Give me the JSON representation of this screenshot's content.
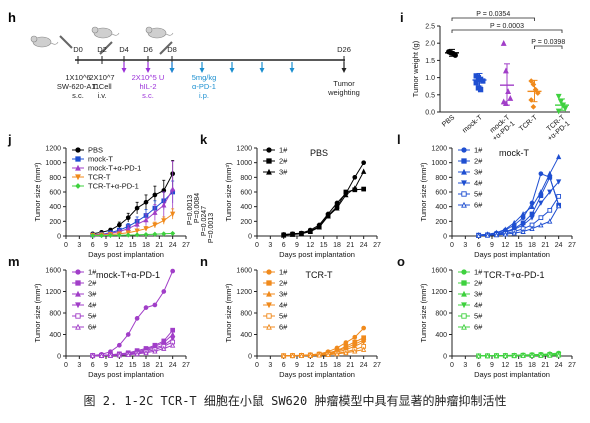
{
  "caption": "图 2. 1-2C TCR-T 细胞在小鼠 SW620 肿瘤模型中具有显著的肿瘤抑制活性",
  "timeline": {
    "panel": "h",
    "days": [
      "D0",
      "D2",
      "D4",
      "D6",
      "D8",
      "D26"
    ],
    "events": [
      {
        "text": "1X10^6\nSW-620-A11\ns.c."
      },
      {
        "text": "2X10^7\nT Cell\ni.v."
      },
      {
        "text": "2X10^5 U\nhIL-2\ns.c."
      },
      {
        "text": "5mg/kg\nα-PD-1\ni.p."
      },
      {
        "text": "Tumor\nweighting"
      }
    ],
    "colors": {
      "il2": "#9b30d9",
      "pd1": "#1b8fd0",
      "axis": "#222222"
    }
  },
  "chart_data": [
    {
      "panel": "i",
      "type": "scatter",
      "ylabel": "Tumor weight (g)",
      "ylim": [
        0,
        2.5
      ],
      "yticks": [
        "0.0",
        "0.5",
        "1.0",
        "1.5",
        "2.0",
        "2.5"
      ],
      "categories": [
        "PBS",
        "mock-T",
        "mock-T\n+α-PD-1",
        "TCR-T",
        "TCR-T\n+α-PD-1"
      ],
      "colors": [
        "#000000",
        "#1f4fd1",
        "#a13ec8",
        "#f08a1c",
        "#3fd13f"
      ],
      "markers": [
        "circle",
        "square",
        "triangle",
        "diamond",
        "triangle-down"
      ],
      "points": [
        [
          1.75,
          1.72,
          1.7,
          1.65
        ],
        [
          1.05,
          1.0,
          0.95,
          0.9,
          0.85,
          0.7,
          0.65
        ],
        [
          2.0,
          1.2,
          0.6,
          0.4,
          0.3,
          0.25
        ],
        [
          0.9,
          0.8,
          0.65,
          0.55,
          0.35,
          0.15
        ],
        [
          0.45,
          0.3,
          0.2,
          0.1,
          0.02
        ]
      ],
      "means": [
        1.72,
        0.93,
        0.78,
        0.6,
        0.2
      ],
      "errors": [
        [
          1.62,
          1.82
        ],
        [
          0.75,
          1.12
        ],
        [
          0.2,
          1.4
        ],
        [
          0.3,
          0.92
        ],
        [
          0.05,
          0.38
        ]
      ],
      "pvalues": [
        {
          "text": "P = 0.0354",
          "from": 1,
          "to": 4
        },
        {
          "text": "P = 0.0003",
          "from": 1,
          "to": 5
        },
        {
          "text": "P = 0.0398",
          "from": 4,
          "to": 5
        }
      ]
    },
    {
      "panel": "j",
      "type": "line",
      "xlabel": "Days post implantation",
      "ylabel": "Tumor size (mm³)",
      "xlim": [
        0,
        27
      ],
      "ylim": [
        0,
        1200
      ],
      "xticks": [
        "0",
        "3",
        "6",
        "9",
        "12",
        "15",
        "18",
        "21",
        "24",
        "27"
      ],
      "yticks": [
        "0",
        "200",
        "400",
        "600",
        "800",
        "1000",
        "1200"
      ],
      "x": [
        6,
        8,
        10,
        12,
        14,
        16,
        18,
        20,
        22,
        24
      ],
      "series": [
        {
          "name": "PBS",
          "color": "#000000",
          "marker": "circle",
          "values": [
            30,
            50,
            80,
            150,
            250,
            380,
            460,
            560,
            620,
            850
          ],
          "err": [
            10,
            15,
            25,
            40,
            60,
            80,
            100,
            120,
            140,
            180
          ]
        },
        {
          "name": "mock-T",
          "color": "#1f4fd1",
          "marker": "square",
          "values": [
            15,
            25,
            45,
            80,
            130,
            200,
            280,
            380,
            480,
            600
          ],
          "err": [
            5,
            10,
            15,
            25,
            40,
            60,
            80,
            100,
            120,
            150
          ]
        },
        {
          "name": "mock-T+α-PD-1",
          "color": "#a13ec8",
          "marker": "triangle",
          "values": [
            15,
            20,
            35,
            60,
            100,
            160,
            220,
            320,
            420,
            640
          ],
          "err": [
            5,
            10,
            15,
            25,
            40,
            60,
            80,
            110,
            180,
            380
          ]
        },
        {
          "name": "TCR-T",
          "color": "#f08a1c",
          "marker": "triangle-down",
          "values": [
            10,
            15,
            20,
            30,
            45,
            70,
            100,
            150,
            210,
            300
          ],
          "err": [
            5,
            5,
            10,
            10,
            15,
            20,
            30,
            40,
            50,
            70
          ]
        },
        {
          "name": "TCR-T+α-PD-1",
          "color": "#3fd13f",
          "marker": "diamond",
          "values": [
            5,
            5,
            8,
            10,
            12,
            15,
            20,
            25,
            30,
            35
          ],
          "err": [
            2,
            2,
            3,
            3,
            4,
            5,
            6,
            7,
            8,
            10
          ]
        }
      ],
      "pvalues": [
        "P=0.0013",
        "P=0.0084",
        "P=0.0247",
        "P=0.0013"
      ]
    },
    {
      "panel": "k",
      "type": "line",
      "title": "PBS",
      "xlabel": "Days post implantation",
      "ylabel": "Tumor size (mm³)",
      "xlim": [
        0,
        27
      ],
      "ylim": [
        0,
        1200
      ],
      "xticks": [
        "0",
        "3",
        "6",
        "9",
        "12",
        "15",
        "18",
        "21",
        "24",
        "27"
      ],
      "yticks": [
        "0",
        "200",
        "400",
        "600",
        "800",
        "1000",
        "1200"
      ],
      "x": [
        6,
        8,
        10,
        12,
        14,
        16,
        18,
        20,
        22,
        24
      ],
      "series": [
        {
          "name": "1#",
          "color": "#000000",
          "marker": "circle",
          "values": [
            20,
            30,
            40,
            80,
            150,
            300,
            450,
            580,
            800,
            1000
          ]
        },
        {
          "name": "2#",
          "color": "#000000",
          "marker": "square",
          "values": [
            15,
            25,
            35,
            70,
            130,
            280,
            400,
            600,
            630,
            640
          ]
        },
        {
          "name": "3#",
          "color": "#000000",
          "marker": "triangle",
          "values": [
            10,
            20,
            30,
            60,
            120,
            270,
            380,
            560,
            650,
            880
          ]
        }
      ]
    },
    {
      "panel": "l",
      "type": "line",
      "title": "mock-T",
      "xlabel": "Days post implantation",
      "ylabel": "Tumor size (mm³)",
      "xlim": [
        0,
        27
      ],
      "ylim": [
        0,
        1200
      ],
      "xticks": [
        "0",
        "3",
        "6",
        "9",
        "12",
        "15",
        "18",
        "21",
        "24",
        "27"
      ],
      "yticks": [
        "0",
        "200",
        "400",
        "600",
        "800",
        "1000",
        "1200"
      ],
      "x": [
        6,
        8,
        10,
        12,
        14,
        16,
        18,
        20,
        22,
        24
      ],
      "series": [
        {
          "name": "1#",
          "color": "#1f4fd1",
          "marker": "circle",
          "values": [
            10,
            20,
            40,
            80,
            150,
            250,
            450,
            850,
            800,
            420
          ]
        },
        {
          "name": "2#",
          "color": "#1f4fd1",
          "marker": "square",
          "values": [
            10,
            15,
            30,
            60,
            100,
            180,
            300,
            550,
            800,
            420
          ]
        },
        {
          "name": "3#",
          "color": "#1f4fd1",
          "marker": "triangle",
          "values": [
            15,
            25,
            45,
            90,
            180,
            300,
            400,
            600,
            850,
            1080
          ]
        },
        {
          "name": "4#",
          "color": "#1f4fd1",
          "marker": "triangle-down",
          "values": [
            10,
            15,
            25,
            50,
            90,
            150,
            250,
            450,
            600,
            740
          ]
        },
        {
          "name": "5#",
          "color": "#1f4fd1",
          "marker": "square-open",
          "values": [
            5,
            10,
            20,
            35,
            60,
            100,
            150,
            250,
            350,
            540
          ]
        },
        {
          "name": "6#",
          "color": "#1f4fd1",
          "marker": "triangle-open",
          "values": [
            5,
            10,
            15,
            25,
            40,
            60,
            100,
            150,
            200,
            410
          ]
        }
      ]
    },
    {
      "panel": "m",
      "type": "line",
      "title": "mock-T+α-PD-1",
      "xlabel": "Days post implantation",
      "ylabel": "Tumor size (mm³)",
      "xlim": [
        0,
        27
      ],
      "ylim": [
        0,
        1600
      ],
      "xticks": [
        "0",
        "3",
        "6",
        "9",
        "12",
        "15",
        "18",
        "21",
        "24",
        "27"
      ],
      "yticks": [
        "0",
        "400",
        "800",
        "1200",
        "1600"
      ],
      "x": [
        6,
        8,
        10,
        12,
        14,
        16,
        18,
        20,
        22,
        24
      ],
      "series": [
        {
          "name": "1#",
          "color": "#a13ec8",
          "marker": "circle",
          "values": [
            10,
            30,
            80,
            200,
            400,
            700,
            900,
            950,
            1200,
            1580
          ]
        },
        {
          "name": "2#",
          "color": "#a13ec8",
          "marker": "square",
          "values": [
            10,
            15,
            25,
            40,
            60,
            100,
            140,
            200,
            280,
            480
          ]
        },
        {
          "name": "3#",
          "color": "#a13ec8",
          "marker": "triangle",
          "values": [
            8,
            12,
            20,
            35,
            50,
            80,
            120,
            180,
            250,
            400
          ]
        },
        {
          "name": "4#",
          "color": "#a13ec8",
          "marker": "triangle-down",
          "values": [
            5,
            10,
            15,
            25,
            40,
            60,
            100,
            150,
            200,
            320
          ]
        },
        {
          "name": "5#",
          "color": "#a13ec8",
          "marker": "square-open",
          "values": [
            5,
            8,
            12,
            20,
            30,
            50,
            80,
            120,
            180,
            260
          ]
        },
        {
          "name": "6#",
          "color": "#a13ec8",
          "marker": "triangle-open",
          "values": [
            5,
            8,
            10,
            15,
            25,
            40,
            60,
            90,
            140,
            200
          ]
        }
      ]
    },
    {
      "panel": "n",
      "type": "line",
      "title": "TCR-T",
      "xlabel": "Days post implantation",
      "ylabel": "Tumor size (mm³)",
      "xlim": [
        0,
        27
      ],
      "ylim": [
        0,
        1600
      ],
      "xticks": [
        "0",
        "3",
        "6",
        "9",
        "12",
        "15",
        "18",
        "21",
        "24",
        "27"
      ],
      "yticks": [
        "0",
        "400",
        "800",
        "1200",
        "1600"
      ],
      "x": [
        6,
        8,
        10,
        12,
        14,
        16,
        18,
        20,
        22,
        24
      ],
      "series": [
        {
          "name": "1#",
          "color": "#f08a1c",
          "marker": "circle",
          "values": [
            5,
            10,
            15,
            25,
            40,
            80,
            150,
            250,
            350,
            520
          ]
        },
        {
          "name": "2#",
          "color": "#f08a1c",
          "marker": "square",
          "values": [
            5,
            8,
            12,
            20,
            35,
            60,
            100,
            180,
            260,
            340
          ]
        },
        {
          "name": "3#",
          "color": "#f08a1c",
          "marker": "triangle",
          "values": [
            5,
            8,
            10,
            18,
            30,
            50,
            90,
            150,
            220,
            300
          ]
        },
        {
          "name": "4#",
          "color": "#f08a1c",
          "marker": "triangle-down",
          "values": [
            4,
            6,
            10,
            15,
            25,
            40,
            70,
            120,
            180,
            260
          ]
        },
        {
          "name": "5#",
          "color": "#f08a1c",
          "marker": "square-open",
          "values": [
            3,
            5,
            8,
            12,
            20,
            30,
            50,
            80,
            120,
            180
          ]
        },
        {
          "name": "6#",
          "color": "#f08a1c",
          "marker": "triangle-open",
          "values": [
            3,
            5,
            6,
            10,
            15,
            25,
            40,
            60,
            90,
            120
          ]
        }
      ]
    },
    {
      "panel": "o",
      "type": "line",
      "title": "TCR-T+α-PD-1",
      "xlabel": "Days post implantation",
      "ylabel": "Tumor size (mm³)",
      "xlim": [
        0,
        27
      ],
      "ylim": [
        0,
        1600
      ],
      "xticks": [
        "0",
        "3",
        "6",
        "9",
        "12",
        "15",
        "18",
        "21",
        "24",
        "27"
      ],
      "yticks": [
        "0",
        "400",
        "800",
        "1200",
        "1600"
      ],
      "x": [
        6,
        8,
        10,
        12,
        14,
        16,
        18,
        20,
        22,
        24
      ],
      "series": [
        {
          "name": "1#",
          "color": "#3fd13f",
          "marker": "circle",
          "values": [
            3,
            5,
            8,
            10,
            15,
            20,
            25,
            30,
            40,
            55
          ]
        },
        {
          "name": "2#",
          "color": "#3fd13f",
          "marker": "square",
          "values": [
            3,
            5,
            6,
            8,
            12,
            15,
            20,
            25,
            30,
            40
          ]
        },
        {
          "name": "3#",
          "color": "#3fd13f",
          "marker": "triangle",
          "values": [
            2,
            4,
            5,
            8,
            10,
            12,
            18,
            22,
            28,
            35
          ]
        },
        {
          "name": "4#",
          "color": "#3fd13f",
          "marker": "triangle-down",
          "values": [
            2,
            3,
            5,
            6,
            8,
            10,
            12,
            15,
            20,
            25
          ]
        },
        {
          "name": "5#",
          "color": "#3fd13f",
          "marker": "square-open",
          "values": [
            2,
            3,
            4,
            5,
            6,
            8,
            10,
            12,
            15,
            20
          ]
        },
        {
          "name": "6#",
          "color": "#3fd13f",
          "marker": "triangle-open",
          "values": [
            1,
            2,
            3,
            4,
            5,
            6,
            8,
            10,
            12,
            15
          ]
        }
      ]
    }
  ]
}
